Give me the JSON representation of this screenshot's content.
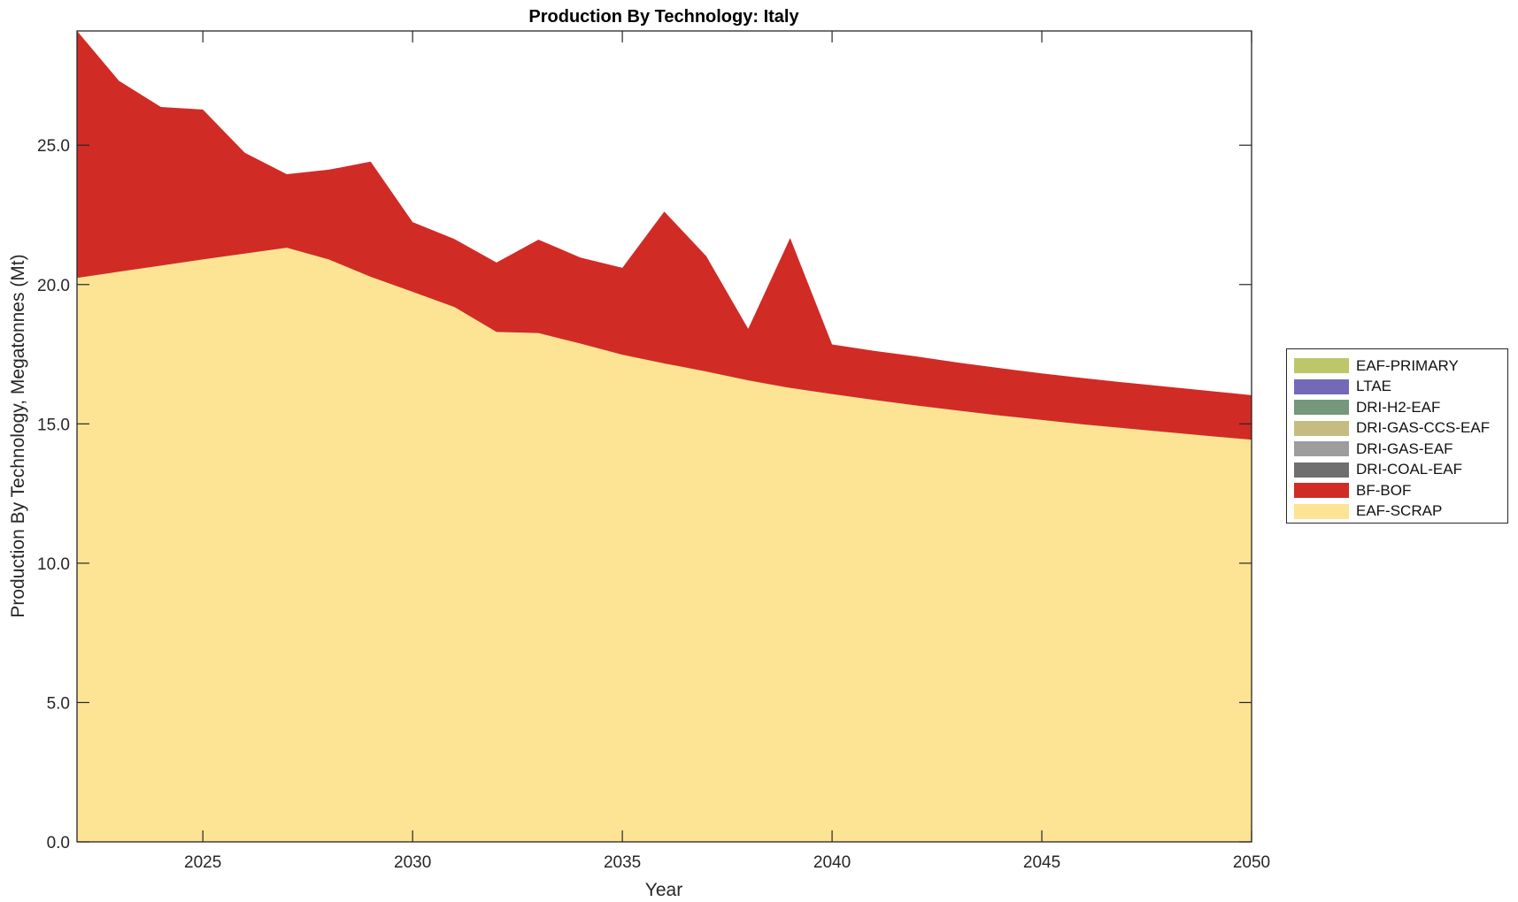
{
  "chart_data": {
    "type": "area",
    "stacked": true,
    "title": "Production By Technology: Italy",
    "xlabel": "Year",
    "ylabel": "Production By Technology, Megatonnes (Mt)",
    "xlim": [
      2022,
      2050
    ],
    "ylim": [
      0,
      29.1
    ],
    "x_ticks": [
      2025,
      2030,
      2035,
      2040,
      2045,
      2050
    ],
    "x_tick_labels": [
      "2025",
      "2030",
      "2035",
      "2040",
      "2045",
      "2050"
    ],
    "y_ticks": [
      0,
      5,
      10,
      15,
      20,
      25
    ],
    "y_tick_labels": [
      "0.0",
      "5.0",
      "10.0",
      "15.0",
      "20.0",
      "25.0"
    ],
    "grid": false,
    "legend_position": "right-outside",
    "x": [
      2022,
      2023,
      2024,
      2025,
      2026,
      2027,
      2028,
      2029,
      2030,
      2031,
      2032,
      2033,
      2034,
      2035,
      2036,
      2037,
      2038,
      2039,
      2040,
      2041,
      2042,
      2043,
      2044,
      2045,
      2046,
      2047,
      2048,
      2049,
      2050
    ],
    "series": [
      {
        "name": "EAF-SCRAP",
        "color": "#fde494",
        "values": [
          20.24,
          20.46,
          20.68,
          20.9,
          21.11,
          21.32,
          20.9,
          20.28,
          19.74,
          19.19,
          18.3,
          18.26,
          17.88,
          17.48,
          17.17,
          16.88,
          16.56,
          16.29,
          16.07,
          15.86,
          15.66,
          15.48,
          15.3,
          15.14,
          14.98,
          14.84,
          14.7,
          14.56,
          14.43
        ]
      },
      {
        "name": "BF-BOF",
        "color": "#d12b25",
        "values": [
          8.86,
          6.85,
          5.69,
          5.38,
          3.62,
          2.64,
          3.22,
          4.13,
          2.5,
          2.44,
          2.49,
          3.35,
          3.09,
          3.12,
          5.45,
          4.14,
          1.85,
          5.38,
          1.78,
          1.76,
          1.76,
          1.72,
          1.7,
          1.67,
          1.66,
          1.64,
          1.63,
          1.62,
          1.6
        ]
      },
      {
        "name": "DRI-COAL-EAF",
        "color": "#6f6f6f",
        "values": [
          0,
          0,
          0,
          0,
          0,
          0,
          0,
          0,
          0,
          0,
          0,
          0,
          0,
          0,
          0,
          0,
          0,
          0,
          0,
          0,
          0,
          0,
          0,
          0,
          0,
          0,
          0,
          0,
          0
        ]
      },
      {
        "name": "DRI-GAS-EAF",
        "color": "#9d9d9d",
        "values": [
          0,
          0,
          0,
          0,
          0,
          0,
          0,
          0,
          0,
          0,
          0,
          0,
          0,
          0,
          0,
          0,
          0,
          0,
          0,
          0,
          0,
          0,
          0,
          0,
          0,
          0,
          0,
          0,
          0
        ]
      },
      {
        "name": "DRI-GAS-CCS-EAF",
        "color": "#c5bd7f",
        "values": [
          0,
          0,
          0,
          0,
          0,
          0,
          0,
          0,
          0,
          0,
          0,
          0,
          0,
          0,
          0,
          0,
          0,
          0,
          0,
          0,
          0,
          0,
          0,
          0,
          0,
          0,
          0,
          0,
          0
        ]
      },
      {
        "name": "DRI-H2-EAF",
        "color": "#75977b",
        "values": [
          0,
          0,
          0,
          0,
          0,
          0,
          0,
          0,
          0,
          0,
          0,
          0,
          0,
          0,
          0,
          0,
          0,
          0,
          0,
          0,
          0,
          0,
          0,
          0,
          0,
          0,
          0,
          0,
          0
        ]
      },
      {
        "name": "LTAE",
        "color": "#7468b9",
        "values": [
          0,
          0,
          0,
          0,
          0,
          0,
          0,
          0,
          0,
          0,
          0,
          0,
          0,
          0,
          0,
          0,
          0,
          0,
          0,
          0,
          0,
          0,
          0,
          0,
          0,
          0,
          0,
          0,
          0
        ]
      },
      {
        "name": "EAF-PRIMARY",
        "color": "#bec66a",
        "values": [
          0,
          0,
          0,
          0,
          0,
          0,
          0,
          0,
          0,
          0,
          0,
          0,
          0,
          0,
          0,
          0,
          0,
          0,
          0,
          0,
          0,
          0,
          0,
          0,
          0,
          0,
          0,
          0,
          0
        ]
      }
    ],
    "legend": [
      {
        "label": "EAF-PRIMARY",
        "color": "#bec66a"
      },
      {
        "label": "LTAE",
        "color": "#7468b9"
      },
      {
        "label": "DRI-H2-EAF",
        "color": "#75977b"
      },
      {
        "label": "DRI-GAS-CCS-EAF",
        "color": "#c5bd7f"
      },
      {
        "label": "DRI-GAS-EAF",
        "color": "#9d9d9d"
      },
      {
        "label": "DRI-COAL-EAF",
        "color": "#6f6f6f"
      },
      {
        "label": "BF-BOF",
        "color": "#d12b25"
      },
      {
        "label": "EAF-SCRAP",
        "color": "#fde494"
      }
    ]
  }
}
